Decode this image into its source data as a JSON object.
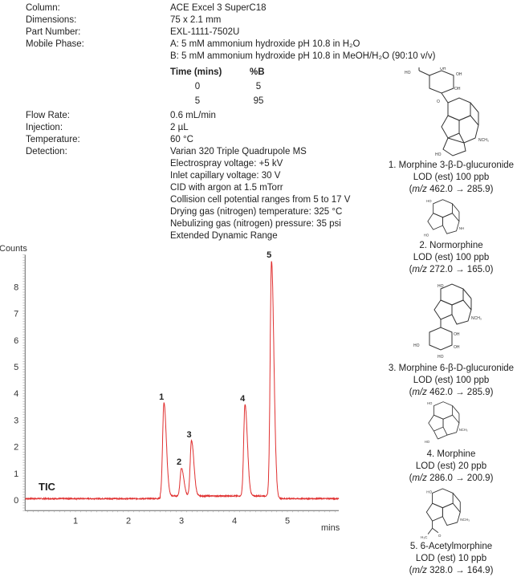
{
  "conditions": [
    {
      "label": "Column:",
      "value": "ACE Excel 3 SuperC18"
    },
    {
      "label": "Dimensions:",
      "value": "75 x 2.1 mm"
    },
    {
      "label": "Part Number:",
      "value": "EXL-1111-7502U"
    },
    {
      "label": "Mobile Phase:",
      "value": "A: 5 mM ammonium hydroxide pH 10.8 in H₂O"
    },
    {
      "label": "",
      "value": "B: 5 mM ammonium hydroxide pH 10.8 in MeOH/H₂O (90:10 v/v)"
    }
  ],
  "gradient": {
    "headers": [
      "Time (mins)",
      "%B"
    ],
    "rows": [
      [
        "0",
        "5"
      ],
      [
        "5",
        "95"
      ]
    ]
  },
  "conditions2": [
    {
      "label": "Flow Rate:",
      "value": "0.6 mL/min"
    },
    {
      "label": "Injection:",
      "value": "2 µL"
    },
    {
      "label": "Temperature:",
      "value": "60 °C"
    },
    {
      "label": "Detection:",
      "value": "Varian 320 Triple Quadrupole MS"
    }
  ],
  "detection_details": [
    "Electrospray voltage: +5 kV",
    "Inlet capillary voltage: 30 V",
    "CID with argon at 1.5 mTorr",
    "Collision cell potential ranges from 5 to 17 V",
    "Drying gas (nitrogen) temperature: 325 °C",
    "Nebulizing gas (nitrogen) pressure: 35 psi",
    "Extended Dynamic Range"
  ],
  "compounds": [
    {
      "name": "1. Morphine 3-β-D-glucuronide",
      "lod": "LOD (est) 100 ppb",
      "mz_prefix": "m/z",
      "mz": " 462.0 → 285.9)"
    },
    {
      "name": "2. Normorphine",
      "lod": "LOD (est) 100 ppb",
      "mz_prefix": "m/z",
      "mz": " 272.0 → 165.0)"
    },
    {
      "name": "3. Morphine 6-β-D-glucuronide",
      "lod": "LOD (est) 100 ppb",
      "mz_prefix": "m/z",
      "mz": " 462.0 → 285.9)"
    },
    {
      "name": "4. Morphine",
      "lod": "LOD (est) 20 ppb",
      "mz_prefix": "m/z",
      "mz": " 286.0 → 200.9)"
    },
    {
      "name": "5. 6-Acetylmorphine",
      "lod": "LOD (est) 10 ppb",
      "mz_prefix": "m/z",
      "mz": " 328.0 → 164.9)"
    }
  ],
  "chart_data": {
    "type": "line",
    "ylabel": "Counts",
    "xlabel": "mins",
    "trace_label": "TIC",
    "xlim": [
      0.05,
      5.97
    ],
    "ylim": [
      -0.4,
      9.2
    ],
    "xticks": [
      "1",
      "2",
      "3",
      "4",
      "5"
    ],
    "yticks": [
      "0",
      "1",
      "2",
      "3",
      "4",
      "5",
      "6",
      "7",
      "8"
    ],
    "grid": false,
    "line_color": "#e03030",
    "baseline": 0.05,
    "peaks": [
      {
        "label": "1",
        "rt": 2.67,
        "height": 3.5
      },
      {
        "label": "2",
        "rt": 3.0,
        "height": 1.05
      },
      {
        "label": "3",
        "rt": 3.19,
        "height": 2.08
      },
      {
        "label": "4",
        "rt": 4.2,
        "height": 3.43
      },
      {
        "label": "5",
        "rt": 4.7,
        "height": 8.82
      }
    ]
  }
}
